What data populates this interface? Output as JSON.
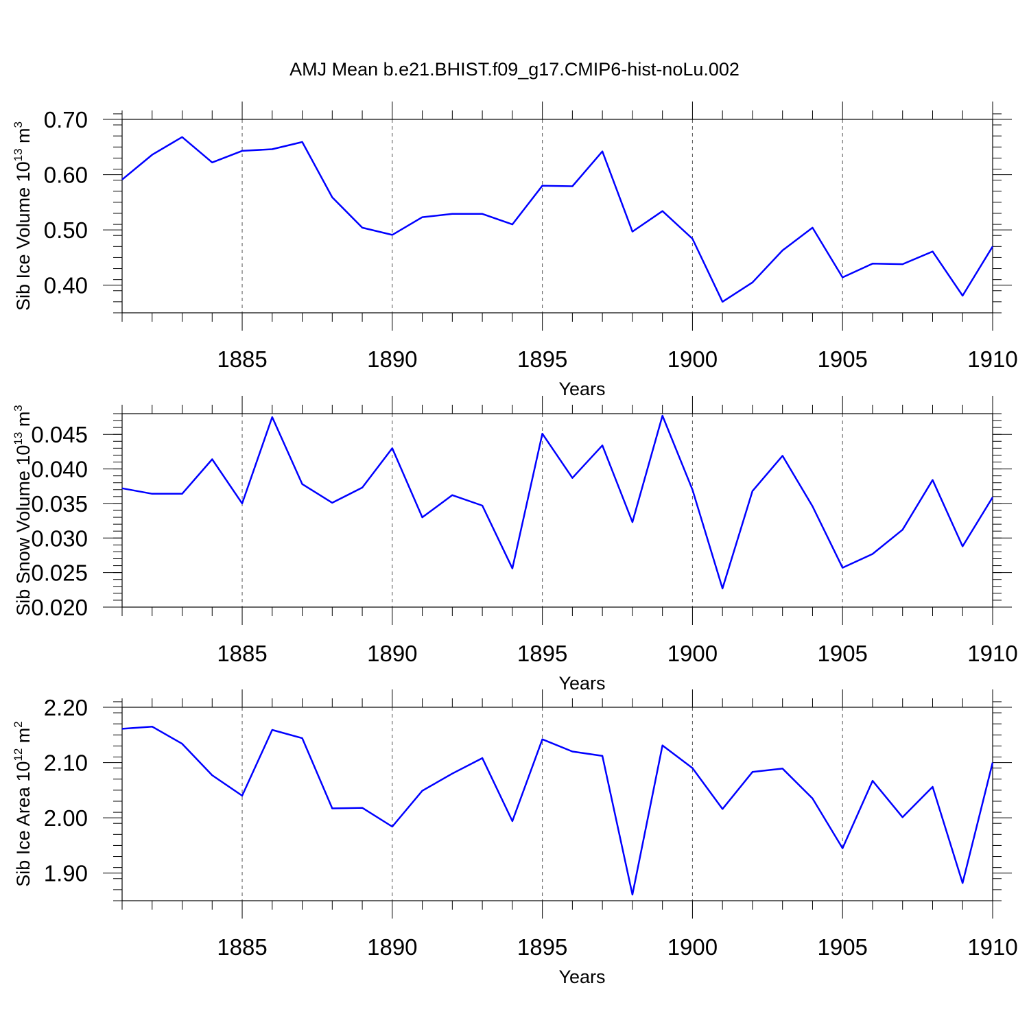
{
  "title": "AMJ Mean b.e21.BHIST.f09_g17.CMIP6-hist-noLu.002",
  "colors": {
    "series": "#0000ff"
  },
  "chart_data": [
    {
      "type": "line",
      "title": "AMJ Mean b.e21.BHIST.f09_g17.CMIP6-hist-noLu.002",
      "xlabel": "Years",
      "ylabel": {
        "main": "Sib Ice Volume 10",
        "exp": "13",
        "unit": " m",
        "unit_exp": "3"
      },
      "xlim": [
        1881,
        1910
      ],
      "ylim": [
        0.35,
        0.7
      ],
      "xticks": [
        "1885",
        "1890",
        "1895",
        "1900",
        "1905",
        "1910"
      ],
      "yticks": [
        "0.70",
        "0.60",
        "0.50",
        "0.40"
      ],
      "ytick_values": [
        0.7,
        0.6,
        0.5,
        0.4
      ],
      "y_minor_step": 0.02,
      "x": [
        1881,
        1882,
        1883,
        1884,
        1885,
        1886,
        1887,
        1888,
        1889,
        1890,
        1891,
        1892,
        1893,
        1894,
        1895,
        1896,
        1897,
        1898,
        1899,
        1900,
        1901,
        1902,
        1903,
        1904,
        1905,
        1906,
        1907,
        1908,
        1909,
        1910
      ],
      "values": [
        0.591,
        0.636,
        0.668,
        0.622,
        0.643,
        0.646,
        0.659,
        0.559,
        0.504,
        0.491,
        0.523,
        0.529,
        0.529,
        0.51,
        0.58,
        0.579,
        0.642,
        0.497,
        0.534,
        0.484,
        0.37,
        0.405,
        0.463,
        0.504,
        0.414,
        0.439,
        0.438,
        0.461,
        0.381,
        0.47
      ]
    },
    {
      "type": "line",
      "xlabel": "Years",
      "ylabel": {
        "main": "Sib Snow Volume 10",
        "exp": "13",
        "unit": " m",
        "unit_exp": "3"
      },
      "xlim": [
        1881,
        1910
      ],
      "ylim": [
        0.02,
        0.048
      ],
      "xticks": [
        "1885",
        "1890",
        "1895",
        "1900",
        "1905",
        "1910"
      ],
      "yticks": [
        "0.045",
        "0.040",
        "0.035",
        "0.030",
        "0.025",
        "0.020"
      ],
      "ytick_values": [
        0.045,
        0.04,
        0.035,
        0.03,
        0.025,
        0.02
      ],
      "y_minor_step": 0.001,
      "x": [
        1881,
        1882,
        1883,
        1884,
        1885,
        1886,
        1887,
        1888,
        1889,
        1890,
        1891,
        1892,
        1893,
        1894,
        1895,
        1896,
        1897,
        1898,
        1899,
        1900,
        1901,
        1902,
        1903,
        1904,
        1905,
        1906,
        1907,
        1908,
        1909,
        1910
      ],
      "values": [
        0.0372,
        0.0364,
        0.0364,
        0.0414,
        0.035,
        0.0475,
        0.0378,
        0.0351,
        0.0373,
        0.043,
        0.033,
        0.0362,
        0.0347,
        0.0256,
        0.0451,
        0.0387,
        0.0434,
        0.0323,
        0.0477,
        0.037,
        0.0227,
        0.0368,
        0.0419,
        0.0346,
        0.0257,
        0.0277,
        0.0312,
        0.0384,
        0.0288,
        0.0359
      ]
    },
    {
      "type": "line",
      "xlabel": "Years",
      "ylabel": {
        "main": "Sib Ice Area 10",
        "exp": "12",
        "unit": " m",
        "unit_exp": "2"
      },
      "xlim": [
        1881,
        1910
      ],
      "ylim": [
        1.85,
        2.2
      ],
      "xticks": [
        "1885",
        "1890",
        "1895",
        "1900",
        "1905",
        "1910"
      ],
      "yticks": [
        "2.20",
        "2.10",
        "2.00",
        "1.90"
      ],
      "ytick_values": [
        2.2,
        2.1,
        2.0,
        1.9
      ],
      "y_minor_step": 0.02,
      "x": [
        1881,
        1882,
        1883,
        1884,
        1885,
        1886,
        1887,
        1888,
        1889,
        1890,
        1891,
        1892,
        1893,
        1894,
        1895,
        1896,
        1897,
        1898,
        1899,
        1900,
        1901,
        1902,
        1903,
        1904,
        1905,
        1906,
        1907,
        1908,
        1909,
        1910
      ],
      "values": [
        2.161,
        2.165,
        2.134,
        2.077,
        2.04,
        2.159,
        2.144,
        2.017,
        2.018,
        1.984,
        2.049,
        2.08,
        2.108,
        1.994,
        2.142,
        2.12,
        2.112,
        1.861,
        2.131,
        2.09,
        2.016,
        2.083,
        2.089,
        2.035,
        1.945,
        2.067,
        2.001,
        2.056,
        1.882,
        2.1
      ]
    }
  ]
}
